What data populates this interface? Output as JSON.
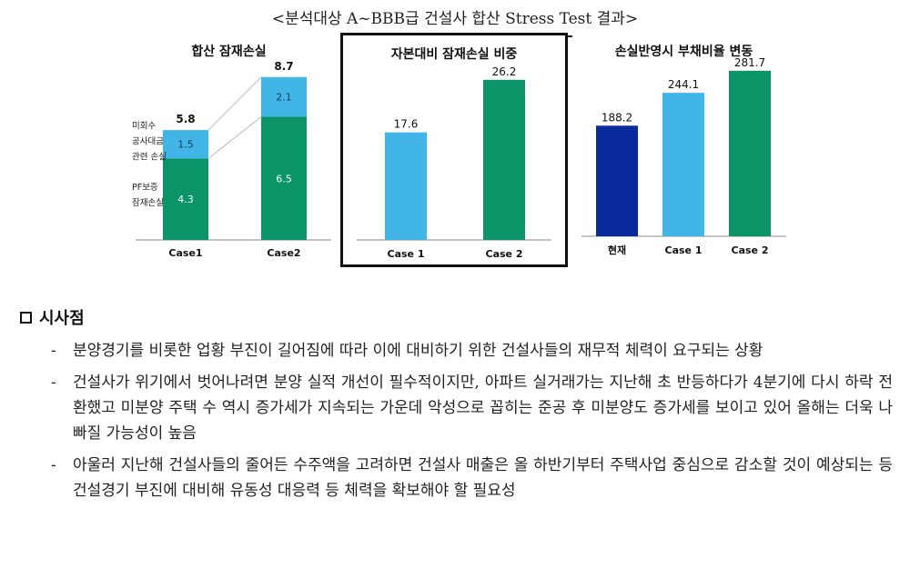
{
  "title": "<분석대상 A~BBB급 건설사 합산 Stress Test 결과>",
  "chart_data": [
    {
      "type": "bar",
      "stacked": true,
      "title": "합산 잠재손실",
      "categories": [
        "Case1",
        "Case2"
      ],
      "series": [
        {
          "name": "PF보증 잠재손실",
          "values": [
            4.3,
            6.5
          ],
          "color": "#0a9467"
        },
        {
          "name": "미회수 공사대금 관련 손실",
          "values": [
            1.5,
            2.1
          ],
          "color": "#41b6e6"
        }
      ],
      "totals": [
        5.8,
        8.7
      ],
      "series_labels": [
        {
          "lines": [
            "미회수",
            "공사대금",
            "관련 손실"
          ]
        },
        {
          "lines": [
            "PF보증",
            "잠재손실"
          ]
        }
      ],
      "ylim": [
        0,
        9.5
      ]
    },
    {
      "type": "bar",
      "title": "자본대비 잠재손실 비중",
      "categories": [
        "Case 1",
        "Case 2"
      ],
      "values": [
        17.6,
        26.2
      ],
      "colors": [
        "#41b6e6",
        "#0a9467"
      ],
      "ylim": [
        0,
        29
      ]
    },
    {
      "type": "bar",
      "title": "손실반영시 부채비율 변동",
      "categories": [
        "현재",
        "Case 1",
        "Case 2"
      ],
      "values": [
        188.2,
        244.1,
        281.7
      ],
      "colors": [
        "#0a2a9c",
        "#41b6e6",
        "#0a9467"
      ],
      "ylim": [
        0,
        300
      ]
    }
  ],
  "insights": {
    "heading": "시사점",
    "dash": "-",
    "items": [
      "분양경기를 비롯한 업황 부진이 길어짐에 따라 이에 대비하기 위한 건설사들의 재무적 체력이 요구되는 상황",
      "건설사가 위기에서 벗어나려면 분양 실적 개선이 필수적이지만, 아파트 실거래가는 지난해 초 반등하다가 4분기에 다시 하락 전환했고 미분양 주택 수 역시 증가세가 지속되는 가운데 악성으로 꼽히는 준공 후 미분양도 증가세를 보이고 있어 올해는 더욱 나빠질 가능성이 높음",
      "아울러 지난해 건설사들의 줄어든 수주액을 고려하면 건설사 매출은 올 하반기부터 주택사업 중심으로 감소할 것이 예상되는 등 건설경기 부진에 대비해 유동성 대응력 등 체력을 확보해야 할 필요성"
    ]
  }
}
